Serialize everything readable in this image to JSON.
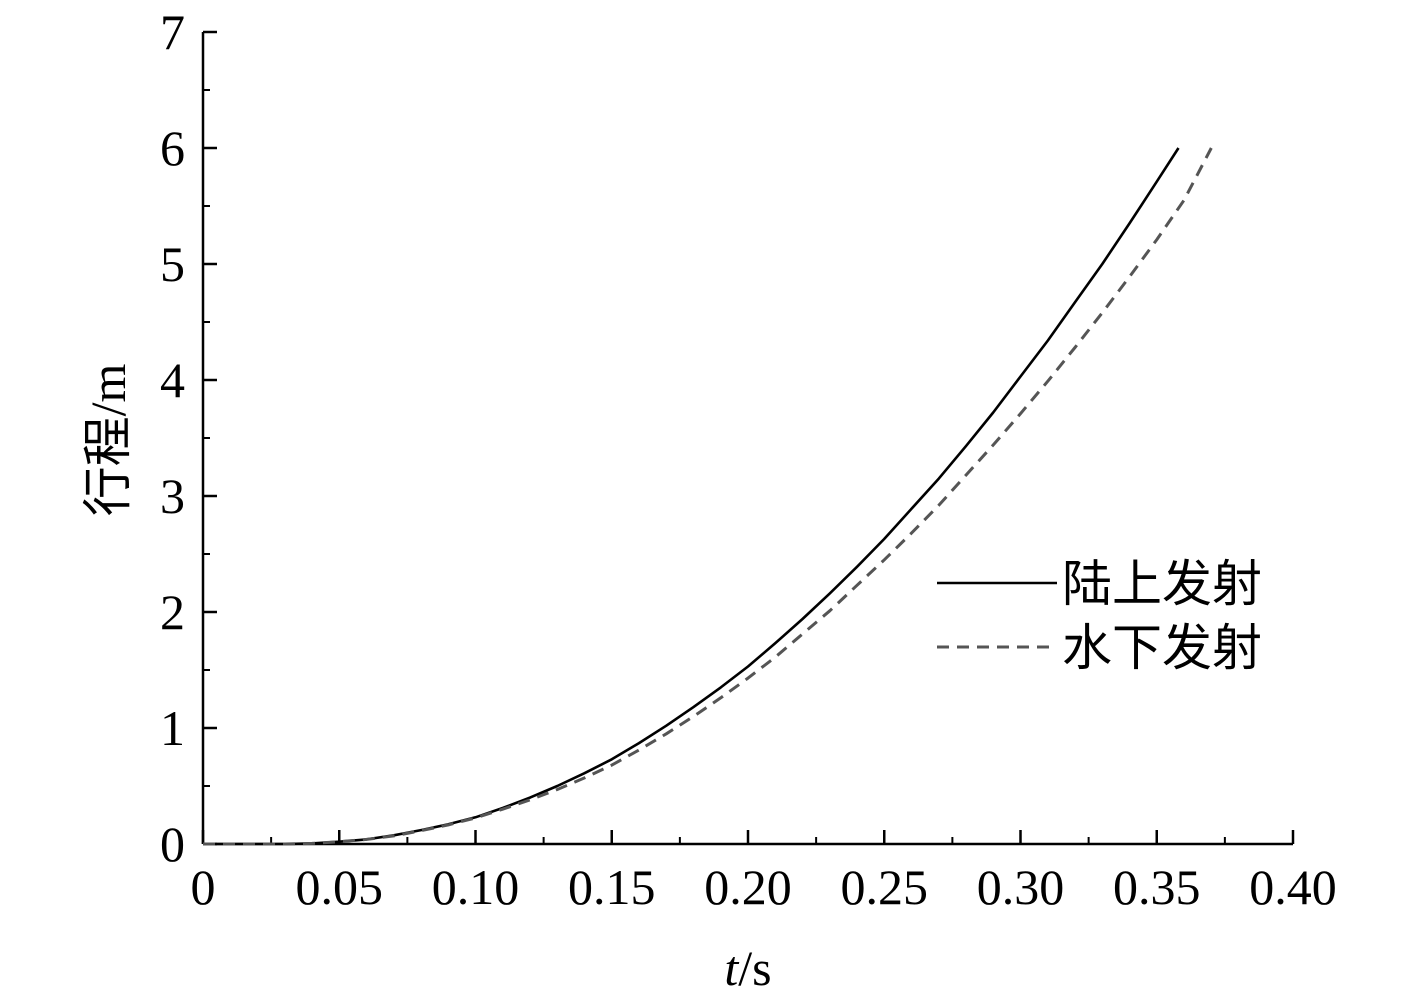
{
  "chart_data": {
    "type": "line",
    "title": "",
    "xlabel_italic": "t",
    "xlabel_unit": "/s",
    "ylabel": "行程/m",
    "xlim": [
      0,
      0.4
    ],
    "ylim": [
      0,
      7
    ],
    "x_ticks": [
      0,
      0.05,
      0.1,
      0.15,
      0.2,
      0.25,
      0.3,
      0.35,
      0.4
    ],
    "x_tick_labels": [
      "0",
      "0.05",
      "0.10",
      "0.15",
      "0.20",
      "0.25",
      "0.30",
      "0.35",
      "0.40"
    ],
    "x_minor_step": 0.025,
    "y_ticks": [
      0,
      1,
      2,
      3,
      4,
      5,
      6,
      7
    ],
    "y_tick_labels": [
      "0",
      "1",
      "2",
      "3",
      "4",
      "5",
      "6",
      "7"
    ],
    "y_minor_step": 0.5,
    "grid": false,
    "legend_position": "center-right",
    "series": [
      {
        "name": "陆上发射",
        "style": "solid",
        "color": "#000000",
        "x": [
          0,
          0.03,
          0.04,
          0.05,
          0.06,
          0.07,
          0.08,
          0.09,
          0.1,
          0.11,
          0.12,
          0.13,
          0.14,
          0.15,
          0.16,
          0.17,
          0.18,
          0.19,
          0.2,
          0.21,
          0.22,
          0.23,
          0.24,
          0.25,
          0.26,
          0.27,
          0.28,
          0.29,
          0.3,
          0.31,
          0.32,
          0.33,
          0.34,
          0.35,
          0.358
        ],
        "y": [
          0,
          0,
          0.005,
          0.02,
          0.04,
          0.075,
          0.12,
          0.17,
          0.23,
          0.31,
          0.4,
          0.5,
          0.61,
          0.73,
          0.87,
          1.02,
          1.18,
          1.35,
          1.53,
          1.73,
          1.94,
          2.16,
          2.39,
          2.63,
          2.89,
          3.15,
          3.43,
          3.72,
          4.03,
          4.34,
          4.67,
          5.0,
          5.35,
          5.71,
          6.0
        ]
      },
      {
        "name": "水下发射",
        "style": "dashed",
        "color": "#555555",
        "x": [
          0,
          0.03,
          0.04,
          0.05,
          0.06,
          0.07,
          0.08,
          0.09,
          0.1,
          0.11,
          0.12,
          0.13,
          0.14,
          0.15,
          0.16,
          0.17,
          0.18,
          0.19,
          0.2,
          0.21,
          0.22,
          0.23,
          0.24,
          0.25,
          0.26,
          0.27,
          0.28,
          0.29,
          0.3,
          0.31,
          0.32,
          0.33,
          0.34,
          0.35,
          0.36,
          0.37
        ],
        "y": [
          0,
          0,
          0.005,
          0.02,
          0.04,
          0.07,
          0.115,
          0.165,
          0.225,
          0.3,
          0.38,
          0.47,
          0.57,
          0.68,
          0.81,
          0.95,
          1.1,
          1.26,
          1.43,
          1.61,
          1.81,
          2.01,
          2.23,
          2.45,
          2.68,
          2.92,
          3.18,
          3.44,
          3.71,
          3.99,
          4.28,
          4.58,
          4.89,
          5.21,
          5.55,
          6.0
        ]
      }
    ]
  }
}
